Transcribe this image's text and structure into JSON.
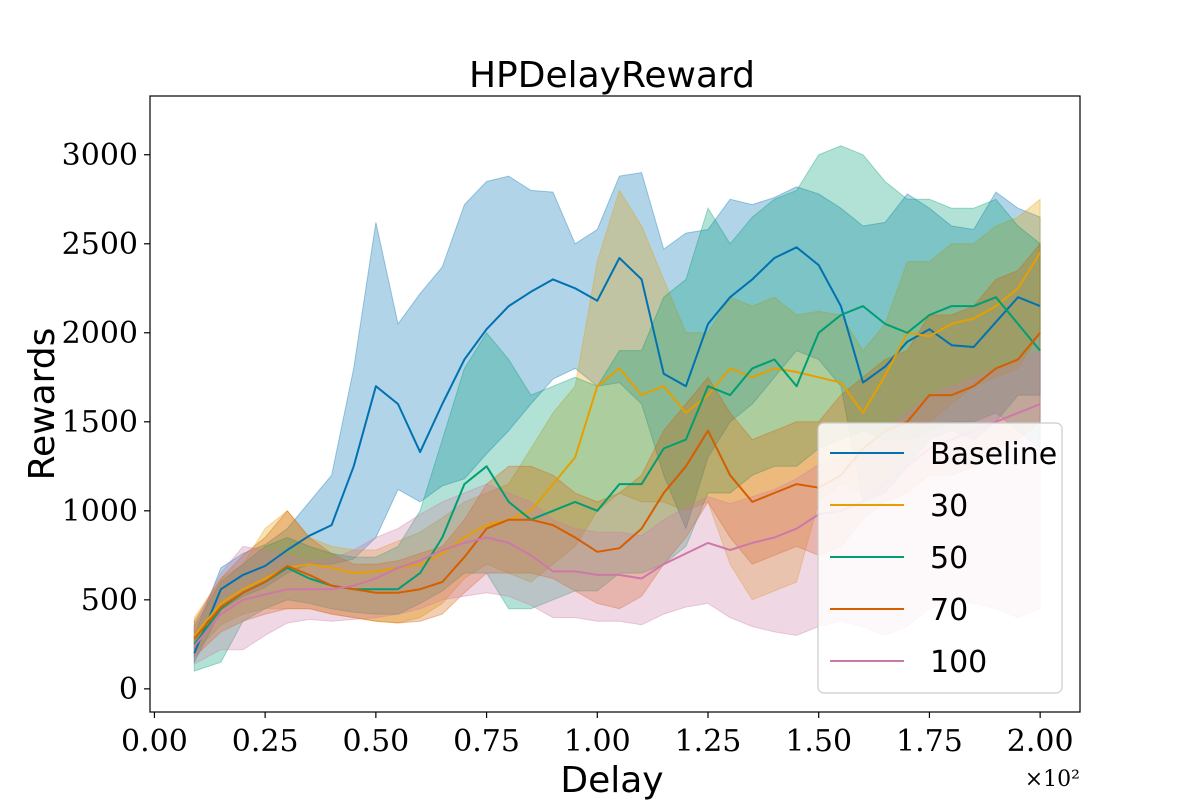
{
  "chart_data": {
    "type": "line",
    "title": "HPDelayReward",
    "xlabel": "Delay",
    "ylabel": "Rewards",
    "x_scale_label": "×10²",
    "xlim": [
      -0.01,
      2.09
    ],
    "ylim": [
      -130,
      3330
    ],
    "xticks": [
      "0.00",
      "0.25",
      "0.50",
      "0.75",
      "1.00",
      "1.25",
      "1.50",
      "1.75",
      "2.00"
    ],
    "yticks": [
      "0",
      "500",
      "1000",
      "1500",
      "2000",
      "2500",
      "3000"
    ],
    "grid": false,
    "legend_position": "lower-right",
    "x": [
      0.09,
      0.15,
      0.2,
      0.25,
      0.3,
      0.35,
      0.4,
      0.45,
      0.5,
      0.55,
      0.6,
      0.65,
      0.7,
      0.75,
      0.8,
      0.85,
      0.9,
      0.95,
      1.0,
      1.05,
      1.1,
      1.15,
      1.2,
      1.25,
      1.3,
      1.35,
      1.4,
      1.45,
      1.5,
      1.55,
      1.6,
      1.65,
      1.7,
      1.75,
      1.8,
      1.85,
      1.9,
      1.95,
      2.0
    ],
    "series": [
      {
        "name": "Baseline",
        "color": "#0072b2",
        "mean": [
          200,
          560,
          640,
          690,
          780,
          860,
          920,
          1250,
          1700,
          1600,
          1330,
          1600,
          1850,
          2020,
          2150,
          2230,
          2300,
          2250,
          2180,
          2420,
          2300,
          1770,
          1700,
          2050,
          2200,
          2300,
          2420,
          2480,
          2380,
          2150,
          1720,
          1810,
          1950,
          2020,
          1930,
          1920,
          2060,
          2200,
          2150
        ],
        "upper": [
          300,
          680,
          760,
          810,
          900,
          1050,
          1200,
          1800,
          2620,
          2050,
          2220,
          2370,
          2720,
          2850,
          2880,
          2800,
          2790,
          2500,
          2580,
          2880,
          2900,
          2470,
          2560,
          2580,
          2750,
          2720,
          2760,
          2820,
          2780,
          2700,
          2600,
          2620,
          2780,
          2700,
          2600,
          2580,
          2790,
          2700,
          2650
        ],
        "lower": [
          150,
          440,
          520,
          570,
          650,
          700,
          700,
          730,
          850,
          1120,
          1050,
          1140,
          1180,
          1320,
          1450,
          1600,
          1740,
          1800,
          1700,
          1720,
          1600,
          1200,
          900,
          1300,
          1500,
          1600,
          1750,
          1900,
          1850,
          1700,
          1050,
          1100,
          1250,
          1400,
          1450,
          1400,
          1500,
          1650,
          1650
        ]
      },
      {
        "name": "30",
        "color": "#e69f00",
        "mean": [
          300,
          480,
          560,
          620,
          680,
          700,
          680,
          650,
          660,
          680,
          700,
          760,
          850,
          920,
          950,
          1000,
          1150,
          1300,
          1700,
          1800,
          1650,
          1700,
          1550,
          1650,
          1800,
          1750,
          1800,
          1780,
          1750,
          1720,
          1550,
          1760,
          2000,
          1980,
          2050,
          2080,
          2150,
          2250,
          2450
        ],
        "upper": [
          400,
          620,
          700,
          900,
          1000,
          850,
          800,
          780,
          780,
          830,
          880,
          960,
          1050,
          1100,
          1150,
          1350,
          1550,
          1700,
          2400,
          2800,
          2600,
          2300,
          2000,
          2000,
          2200,
          2150,
          2200,
          2100,
          2120,
          2100,
          1900,
          2050,
          2400,
          2400,
          2500,
          2500,
          2600,
          2650,
          2750
        ],
        "lower": [
          200,
          360,
          420,
          450,
          450,
          450,
          420,
          400,
          380,
          370,
          400,
          480,
          620,
          700,
          650,
          600,
          700,
          800,
          1000,
          1100,
          1050,
          1050,
          1000,
          1050,
          700,
          500,
          550,
          600,
          1050,
          1150,
          1100,
          1150,
          1350,
          1500,
          1600,
          1700,
          1750,
          1800,
          2000
        ]
      },
      {
        "name": "50",
        "color": "#009e73",
        "mean": [
          250,
          450,
          540,
          600,
          680,
          620,
          580,
          560,
          560,
          560,
          650,
          850,
          1150,
          1250,
          1050,
          950,
          1000,
          1050,
          1000,
          1150,
          1150,
          1350,
          1400,
          1700,
          1650,
          1800,
          1850,
          1700,
          2000,
          2100,
          2150,
          2050,
          2000,
          2100,
          2150,
          2150,
          2200,
          2050,
          1900
        ],
        "upper": [
          350,
          600,
          700,
          800,
          850,
          800,
          760,
          740,
          740,
          800,
          1000,
          1400,
          1800,
          2000,
          1850,
          1650,
          1700,
          1750,
          1700,
          1900,
          1900,
          2200,
          2300,
          2700,
          2500,
          2650,
          2750,
          2800,
          3000,
          3050,
          3000,
          2850,
          2750,
          2750,
          2700,
          2700,
          2750,
          2600,
          2500
        ],
        "lower": [
          100,
          150,
          380,
          450,
          500,
          480,
          450,
          430,
          420,
          420,
          480,
          550,
          650,
          650,
          450,
          450,
          500,
          550,
          550,
          650,
          650,
          700,
          800,
          1100,
          1100,
          1200,
          1250,
          1250,
          1350,
          1400,
          1450,
          1400,
          1400,
          1450,
          1500,
          1500,
          1550,
          1450,
          1350
        ]
      },
      {
        "name": "70",
        "color": "#d55e00",
        "mean": [
          280,
          460,
          540,
          600,
          690,
          640,
          580,
          560,
          540,
          540,
          560,
          600,
          740,
          900,
          950,
          950,
          920,
          850,
          770,
          790,
          900,
          1100,
          1250,
          1450,
          1200,
          1050,
          1100,
          1150,
          1130,
          1200,
          1350,
          1450,
          1500,
          1650,
          1650,
          1700,
          1800,
          1850,
          2000
        ],
        "upper": [
          380,
          620,
          750,
          850,
          1000,
          850,
          760,
          700,
          700,
          720,
          760,
          800,
          950,
          1150,
          1250,
          1250,
          1200,
          1100,
          1050,
          1100,
          1200,
          1450,
          1600,
          1750,
          1550,
          1400,
          1450,
          1500,
          1500,
          1650,
          1750,
          1850,
          1900,
          2100,
          2100,
          2150,
          2300,
          2350,
          2500
        ],
        "lower": [
          180,
          320,
          380,
          420,
          450,
          450,
          420,
          400,
          380,
          370,
          380,
          420,
          540,
          650,
          650,
          650,
          620,
          550,
          480,
          450,
          520,
          700,
          850,
          1050,
          850,
          700,
          750,
          800,
          750,
          800,
          950,
          1050,
          1100,
          1200,
          1200,
          1250,
          1350,
          1400,
          1500
        ]
      },
      {
        "name": "100",
        "color": "#cc79a7",
        "mean": [
          240,
          420,
          500,
          530,
          560,
          560,
          560,
          580,
          620,
          680,
          720,
          780,
          820,
          850,
          820,
          750,
          660,
          660,
          640,
          640,
          620,
          700,
          760,
          820,
          780,
          820,
          850,
          900,
          980,
          1000,
          1050,
          1150,
          1250,
          1350,
          1400,
          1450,
          1500,
          1550,
          1600
        ],
        "upper": [
          360,
          650,
          800,
          780,
          750,
          720,
          730,
          780,
          850,
          900,
          980,
          1050,
          1100,
          1150,
          1100,
          1050,
          950,
          900,
          880,
          880,
          860,
          950,
          1020,
          1080,
          1040,
          1080,
          1120,
          1180,
          1260,
          1300,
          1350,
          1450,
          1550,
          1650,
          1700,
          1750,
          1800,
          1850,
          1900
        ],
        "lower": [
          140,
          220,
          220,
          300,
          370,
          390,
          380,
          390,
          400,
          420,
          450,
          500,
          520,
          540,
          520,
          470,
          400,
          400,
          380,
          380,
          360,
          420,
          460,
          480,
          400,
          350,
          320,
          300,
          350,
          380,
          350,
          300,
          350,
          450,
          500,
          480,
          450,
          400,
          450
        ]
      }
    ]
  }
}
